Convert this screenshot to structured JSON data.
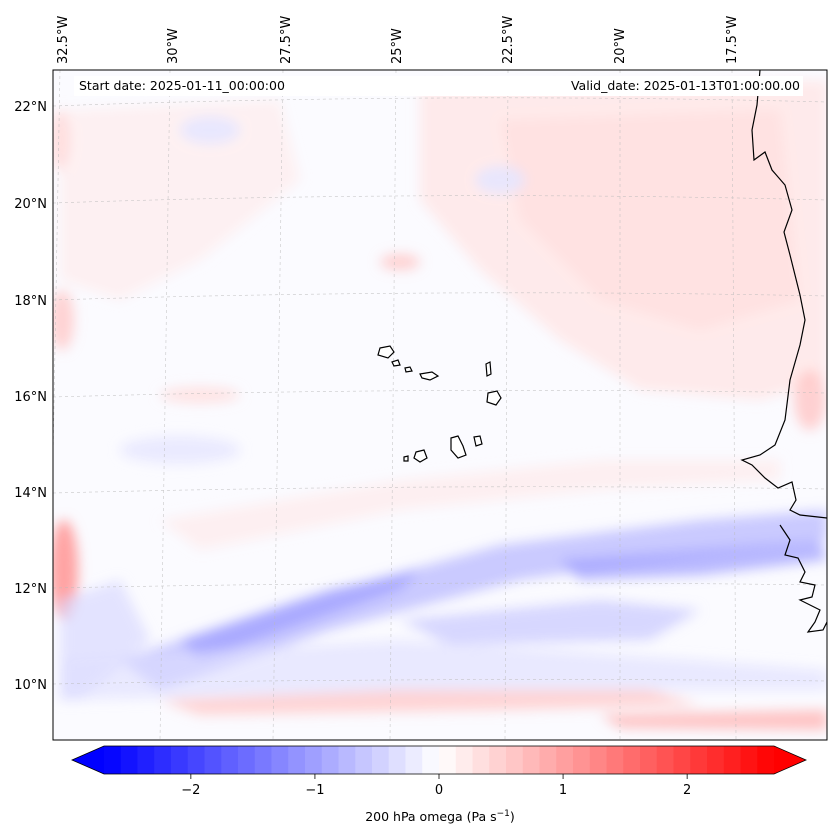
{
  "map": {
    "start_label": "Start date: 2025-01-11_00:00:00",
    "valid_label": "Valid_date: 2025-01-13T01:00:00.00",
    "lon_ticks": [
      "32.5°W",
      "30°W",
      "27.5°W",
      "25°W",
      "22.5°W",
      "20°W",
      "17.5°W"
    ],
    "lat_ticks": [
      "22°N",
      "20°N",
      "18°N",
      "16°N",
      "14°N",
      "12°N",
      "10°N"
    ]
  },
  "colorbar": {
    "min": -2.7,
    "max": 2.7,
    "tick_values": [
      -2,
      -1,
      0,
      1,
      2
    ],
    "tick_labels": [
      "−2",
      "−1",
      "0",
      "1",
      "2"
    ],
    "label": "200 hPa omega (Pa s",
    "label_sup": "−1",
    "label_close": ")",
    "color_neg": "#0000ff",
    "color_zero": "#ffffff",
    "color_pos": "#ff0000"
  }
}
